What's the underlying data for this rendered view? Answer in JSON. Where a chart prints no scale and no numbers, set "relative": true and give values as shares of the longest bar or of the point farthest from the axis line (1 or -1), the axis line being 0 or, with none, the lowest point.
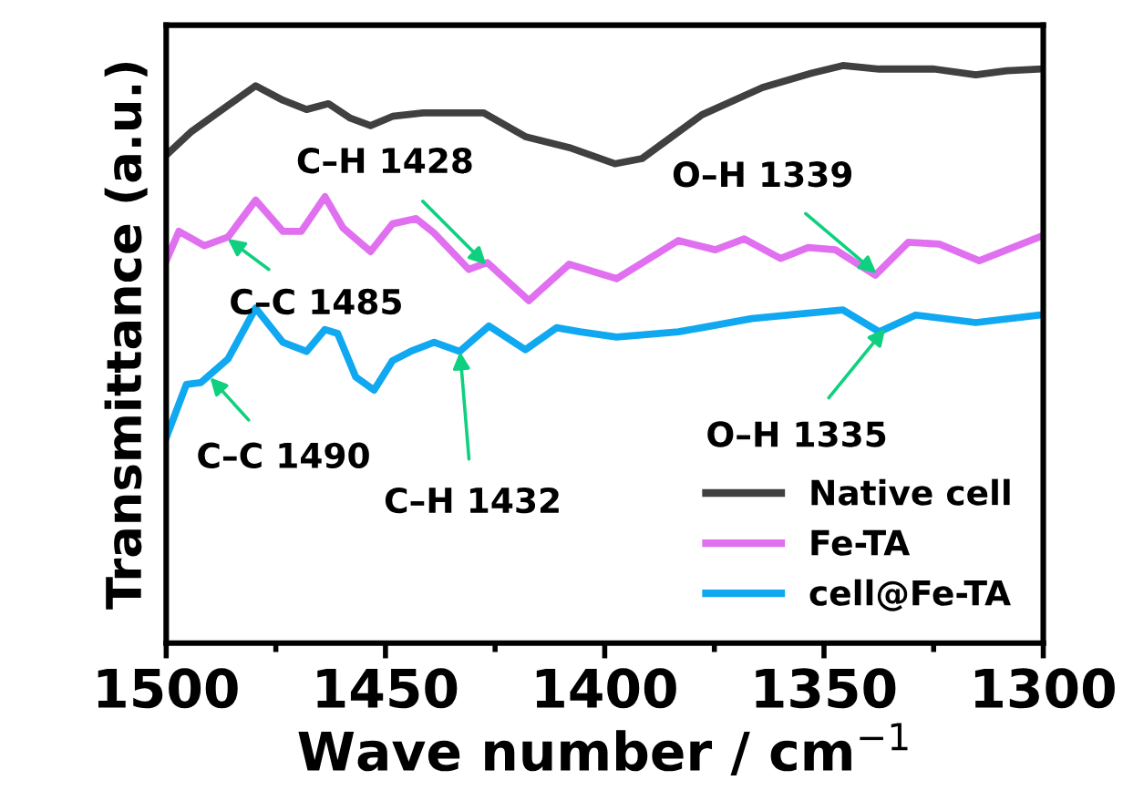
{
  "chart_data": {
    "type": "line",
    "relative": true,
    "xlabel": "Wave number / cm$^{−1}$",
    "ylabel": "Transmittance (a.u.)",
    "xlim": [
      1500,
      1300
    ],
    "xticks": [
      1500,
      {
        "value": 1475,
        "label": null
      },
      1450,
      {
        "value": 1425,
        "label": null
      },
      1400,
      {
        "value": 1375,
        "label": null
      },
      1350,
      {
        "value": 1325,
        "label": null
      },
      1300
    ],
    "grid": false,
    "legend": "bottom right",
    "tick_labels": "x",
    "series": [
      {
        "name": "Native cell",
        "color": "#404040",
        "x": [
          1500,
          1494.2,
          1479.6,
          1473.4,
          1468,
          1463,
          1458,
          1453.4,
          1448.4,
          1441.4,
          1427.6,
          1418.1,
          1408.1,
          1397.7,
          1391.5,
          1377.8,
          1364,
          1352.8,
          1345.7,
          1337.4,
          1324.9,
          1315.4,
          1308.3,
          1301
        ],
        "values": [
          0.845,
          0.886,
          0.965,
          0.94,
          0.924,
          0.934,
          0.909,
          0.896,
          0.912,
          0.918,
          0.918,
          0.877,
          0.858,
          0.83,
          0.839,
          0.915,
          0.962,
          0.987,
          1.0,
          0.994,
          0.994,
          0.984,
          0.991,
          0.994
        ]
      },
      {
        "name": "Fe-TA",
        "color": "#e070f0",
        "x": [
          1500,
          1497.1,
          1491.3,
          1485.9,
          1479.6,
          1473.4,
          1469.2,
          1463.8,
          1459.7,
          1453.4,
          1448.4,
          1443,
          1438.9,
          1431,
          1426.8,
          1417.3,
          1408.1,
          1397.3,
          1383.2,
          1374.8,
          1368.2,
          1359.9,
          1353.6,
          1347.4,
          1338.3,
          1330.8,
          1323.7,
          1314.6,
          1301
        ],
        "values": [
          0.662,
          0.713,
          0.688,
          0.703,
          0.767,
          0.713,
          0.713,
          0.773,
          0.719,
          0.678,
          0.726,
          0.735,
          0.71,
          0.647,
          0.659,
          0.593,
          0.656,
          0.631,
          0.697,
          0.681,
          0.7,
          0.666,
          0.685,
          0.681,
          0.637,
          0.694,
          0.691,
          0.662,
          0.703
        ]
      },
      {
        "name": "cell@Fe-TA",
        "color": "#10a8f0",
        "x": [
          1500,
          1495.4,
          1492.1,
          1485.9,
          1479.6,
          1473.4,
          1468,
          1463.8,
          1460.9,
          1456.8,
          1452.6,
          1448.4,
          1444.3,
          1438.9,
          1433.1,
          1426.4,
          1418.1,
          1411,
          1405.6,
          1397.3,
          1383.2,
          1373.6,
          1366.5,
          1354.1,
          1345.7,
          1337.4,
          1329.1,
          1315.4,
          1301
        ],
        "values": [
          0.356,
          0.448,
          0.451,
          0.492,
          0.58,
          0.521,
          0.505,
          0.543,
          0.536,
          0.461,
          0.438,
          0.489,
          0.505,
          0.521,
          0.505,
          0.549,
          0.508,
          0.546,
          0.539,
          0.53,
          0.539,
          0.552,
          0.562,
          0.571,
          0.577,
          0.539,
          0.568,
          0.555,
          0.568
        ]
      }
    ],
    "annotations": [
      {
        "text": "C–C 1485",
        "x": 1486,
        "y": 0.7
      },
      {
        "text": "C–H 1428",
        "x": 1427,
        "y": 0.655
      },
      {
        "text": "O–H 1339",
        "x": 1338,
        "y": 0.64
      },
      {
        "text": "C–C 1490",
        "x": 1490,
        "y": 0.46
      },
      {
        "text": "C–H 1432",
        "x": 1433,
        "y": 0.505
      },
      {
        "text": "O–H 1335",
        "x": 1336,
        "y": 0.545
      }
    ]
  }
}
